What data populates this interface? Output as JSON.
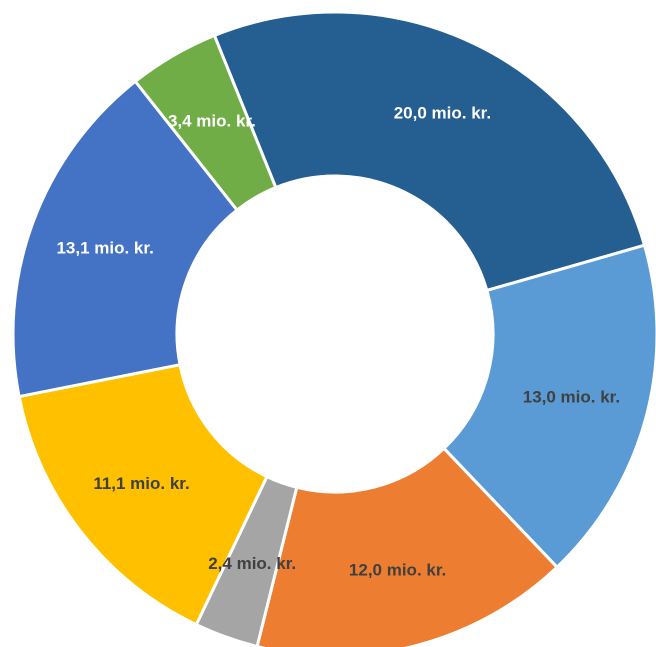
{
  "chart_data": {
    "type": "pie",
    "donut": true,
    "start_angle_deg": -22,
    "slices": [
      {
        "label": "20,0 mio. kr.",
        "value": 20.0,
        "color": "#255E91",
        "label_color": "#FFFFFF"
      },
      {
        "label": "13,0 mio. kr.",
        "value": 13.0,
        "color": "#5B9BD5",
        "label_color": "#404040"
      },
      {
        "label": "12,0 mio. kr.",
        "value": 12.0,
        "color": "#ED7D31",
        "label_color": "#404040"
      },
      {
        "label": "2,4 mio. kr.",
        "value": 2.4,
        "color": "#A5A5A5",
        "label_color": "#404040"
      },
      {
        "label": "11,1 mio. kr.",
        "value": 11.1,
        "color": "#FFC000",
        "label_color": "#404040"
      },
      {
        "label": "13,1 mio. kr.",
        "value": 13.1,
        "color": "#4472C4",
        "label_color": "#FFFFFF"
      },
      {
        "label": "3,4 mio. kr.",
        "value": 3.4,
        "color": "#70AD47",
        "label_color": "#FFFFFF"
      }
    ]
  }
}
